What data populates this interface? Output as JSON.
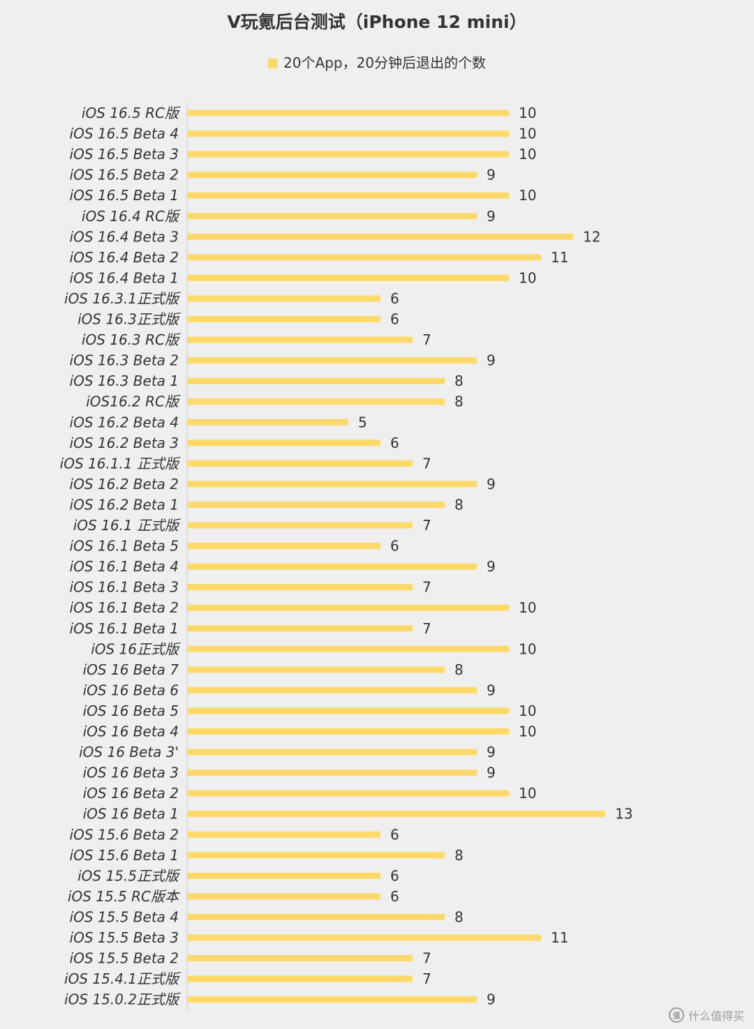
{
  "chart_data": {
    "type": "bar",
    "orientation": "horizontal",
    "title": "V玩氪后台测试（iPhone 12 mini）",
    "legend_position": "top",
    "series": [
      {
        "name": "20个App，20分钟后退出的个数",
        "color": "#fcd968",
        "values": [
          10,
          10,
          10,
          9,
          10,
          9,
          12,
          11,
          10,
          6,
          6,
          7,
          9,
          8,
          8,
          5,
          6,
          7,
          9,
          8,
          7,
          6,
          9,
          7,
          10,
          7,
          10,
          8,
          9,
          10,
          10,
          9,
          9,
          10,
          13,
          6,
          8,
          6,
          6,
          8,
          11,
          7,
          7,
          9
        ]
      }
    ],
    "categories": [
      "iOS 16.5 RC版",
      "iOS 16.5 Beta 4",
      "iOS 16.5 Beta 3",
      "iOS 16.5 Beta 2",
      "iOS 16.5 Beta 1",
      "iOS 16.4 RC版",
      "iOS 16.4 Beta 3",
      "iOS 16.4 Beta 2",
      "iOS 16.4 Beta 1",
      "iOS 16.3.1正式版",
      "iOS 16.3正式版",
      "iOS 16.3 RC版",
      "iOS 16.3 Beta 2",
      "iOS 16.3 Beta 1",
      "iOS16.2 RC版",
      "iOS 16.2 Beta 4",
      "iOS 16.2 Beta 3",
      "iOS 16.1.1 正式版",
      "iOS 16.2 Beta 2",
      "iOS 16.2 Beta 1",
      "iOS 16.1 正式版",
      "iOS 16.1 Beta 5",
      "iOS 16.1 Beta 4",
      "iOS 16.1 Beta 3",
      "iOS 16.1 Beta 2",
      "iOS 16.1 Beta 1",
      "iOS 16正式版",
      "iOS 16 Beta 7",
      "iOS 16 Beta 6",
      "iOS 16 Beta 5",
      "iOS 16 Beta 4",
      "iOS 16 Beta 3'",
      "iOS 16 Beta 3",
      "iOS 16 Beta 2",
      "iOS 16 Beta 1",
      "iOS 15.6 Beta 2",
      "iOS 15.6 Beta 1",
      "iOS 15.5正式版",
      "iOS 15.5 RC版本",
      "iOS 15.5 Beta 4",
      "iOS 15.5 Beta 3",
      "iOS 15.5 Beta 2",
      "iOS 15.4.1正式版",
      "iOS 15.0.2正式版"
    ],
    "xlim": [
      0,
      13
    ],
    "grid": false,
    "axis_color": "#c8c8c8",
    "text_color": "#333333",
    "background": "#efefef"
  },
  "watermark": {
    "logo_text": "值",
    "text": "什么值得买"
  }
}
